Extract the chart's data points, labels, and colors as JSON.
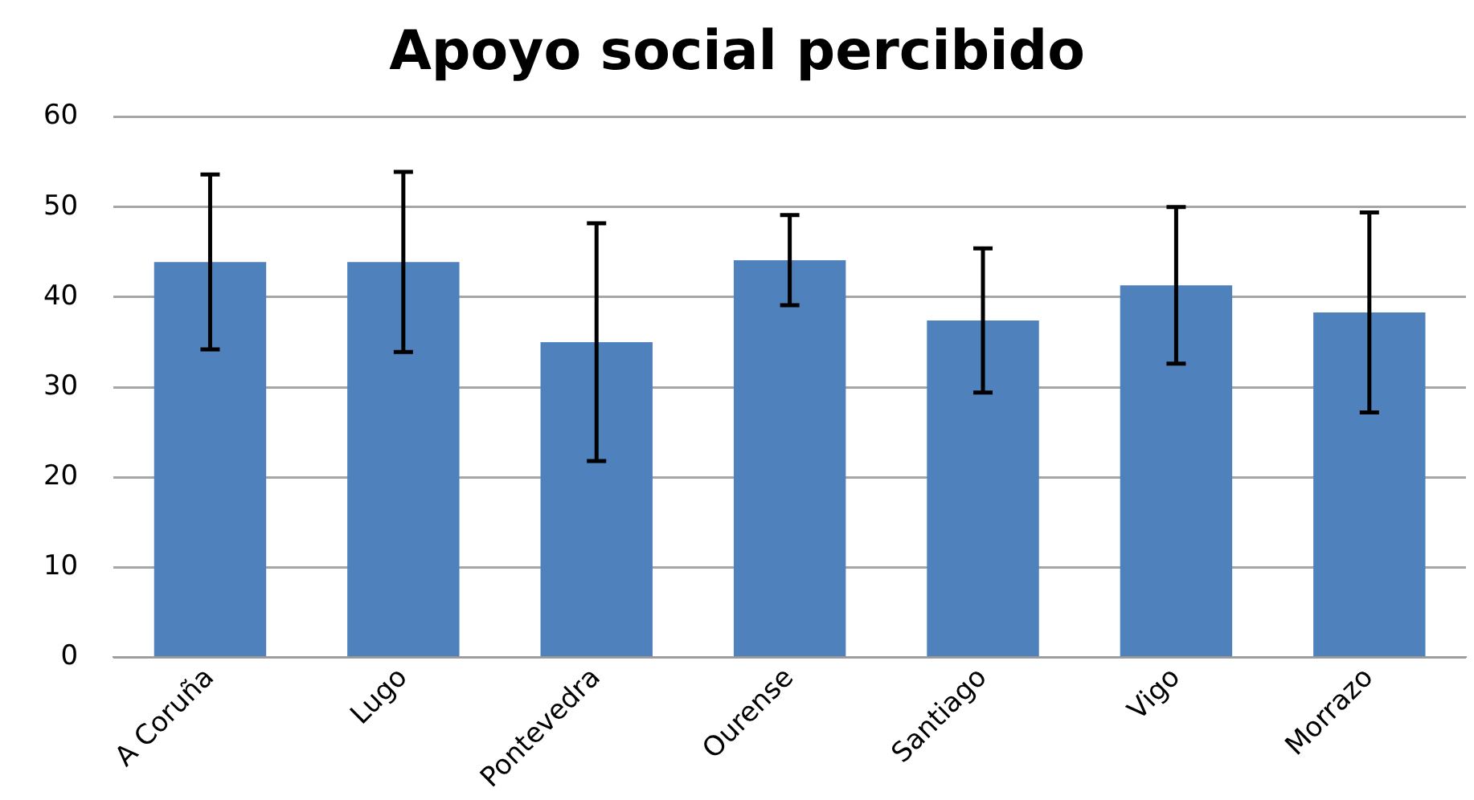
{
  "chart_data": {
    "type": "bar",
    "title": "Apoyo social percibido",
    "categories": [
      "A Coruña",
      "Lugo",
      "Pontevedra",
      "Ourense",
      "Santiago",
      "Vigo",
      "Morrazo"
    ],
    "values": [
      43.9,
      43.9,
      35.0,
      44.1,
      37.4,
      41.3,
      38.3
    ],
    "errors": [
      9.7,
      10.0,
      13.2,
      5.0,
      8.0,
      8.7,
      11.1
    ],
    "color": "#4f81bd",
    "ylim": [
      0,
      60
    ],
    "yticks": [
      0,
      10,
      20,
      30,
      40,
      50,
      60
    ],
    "grid": "y"
  }
}
